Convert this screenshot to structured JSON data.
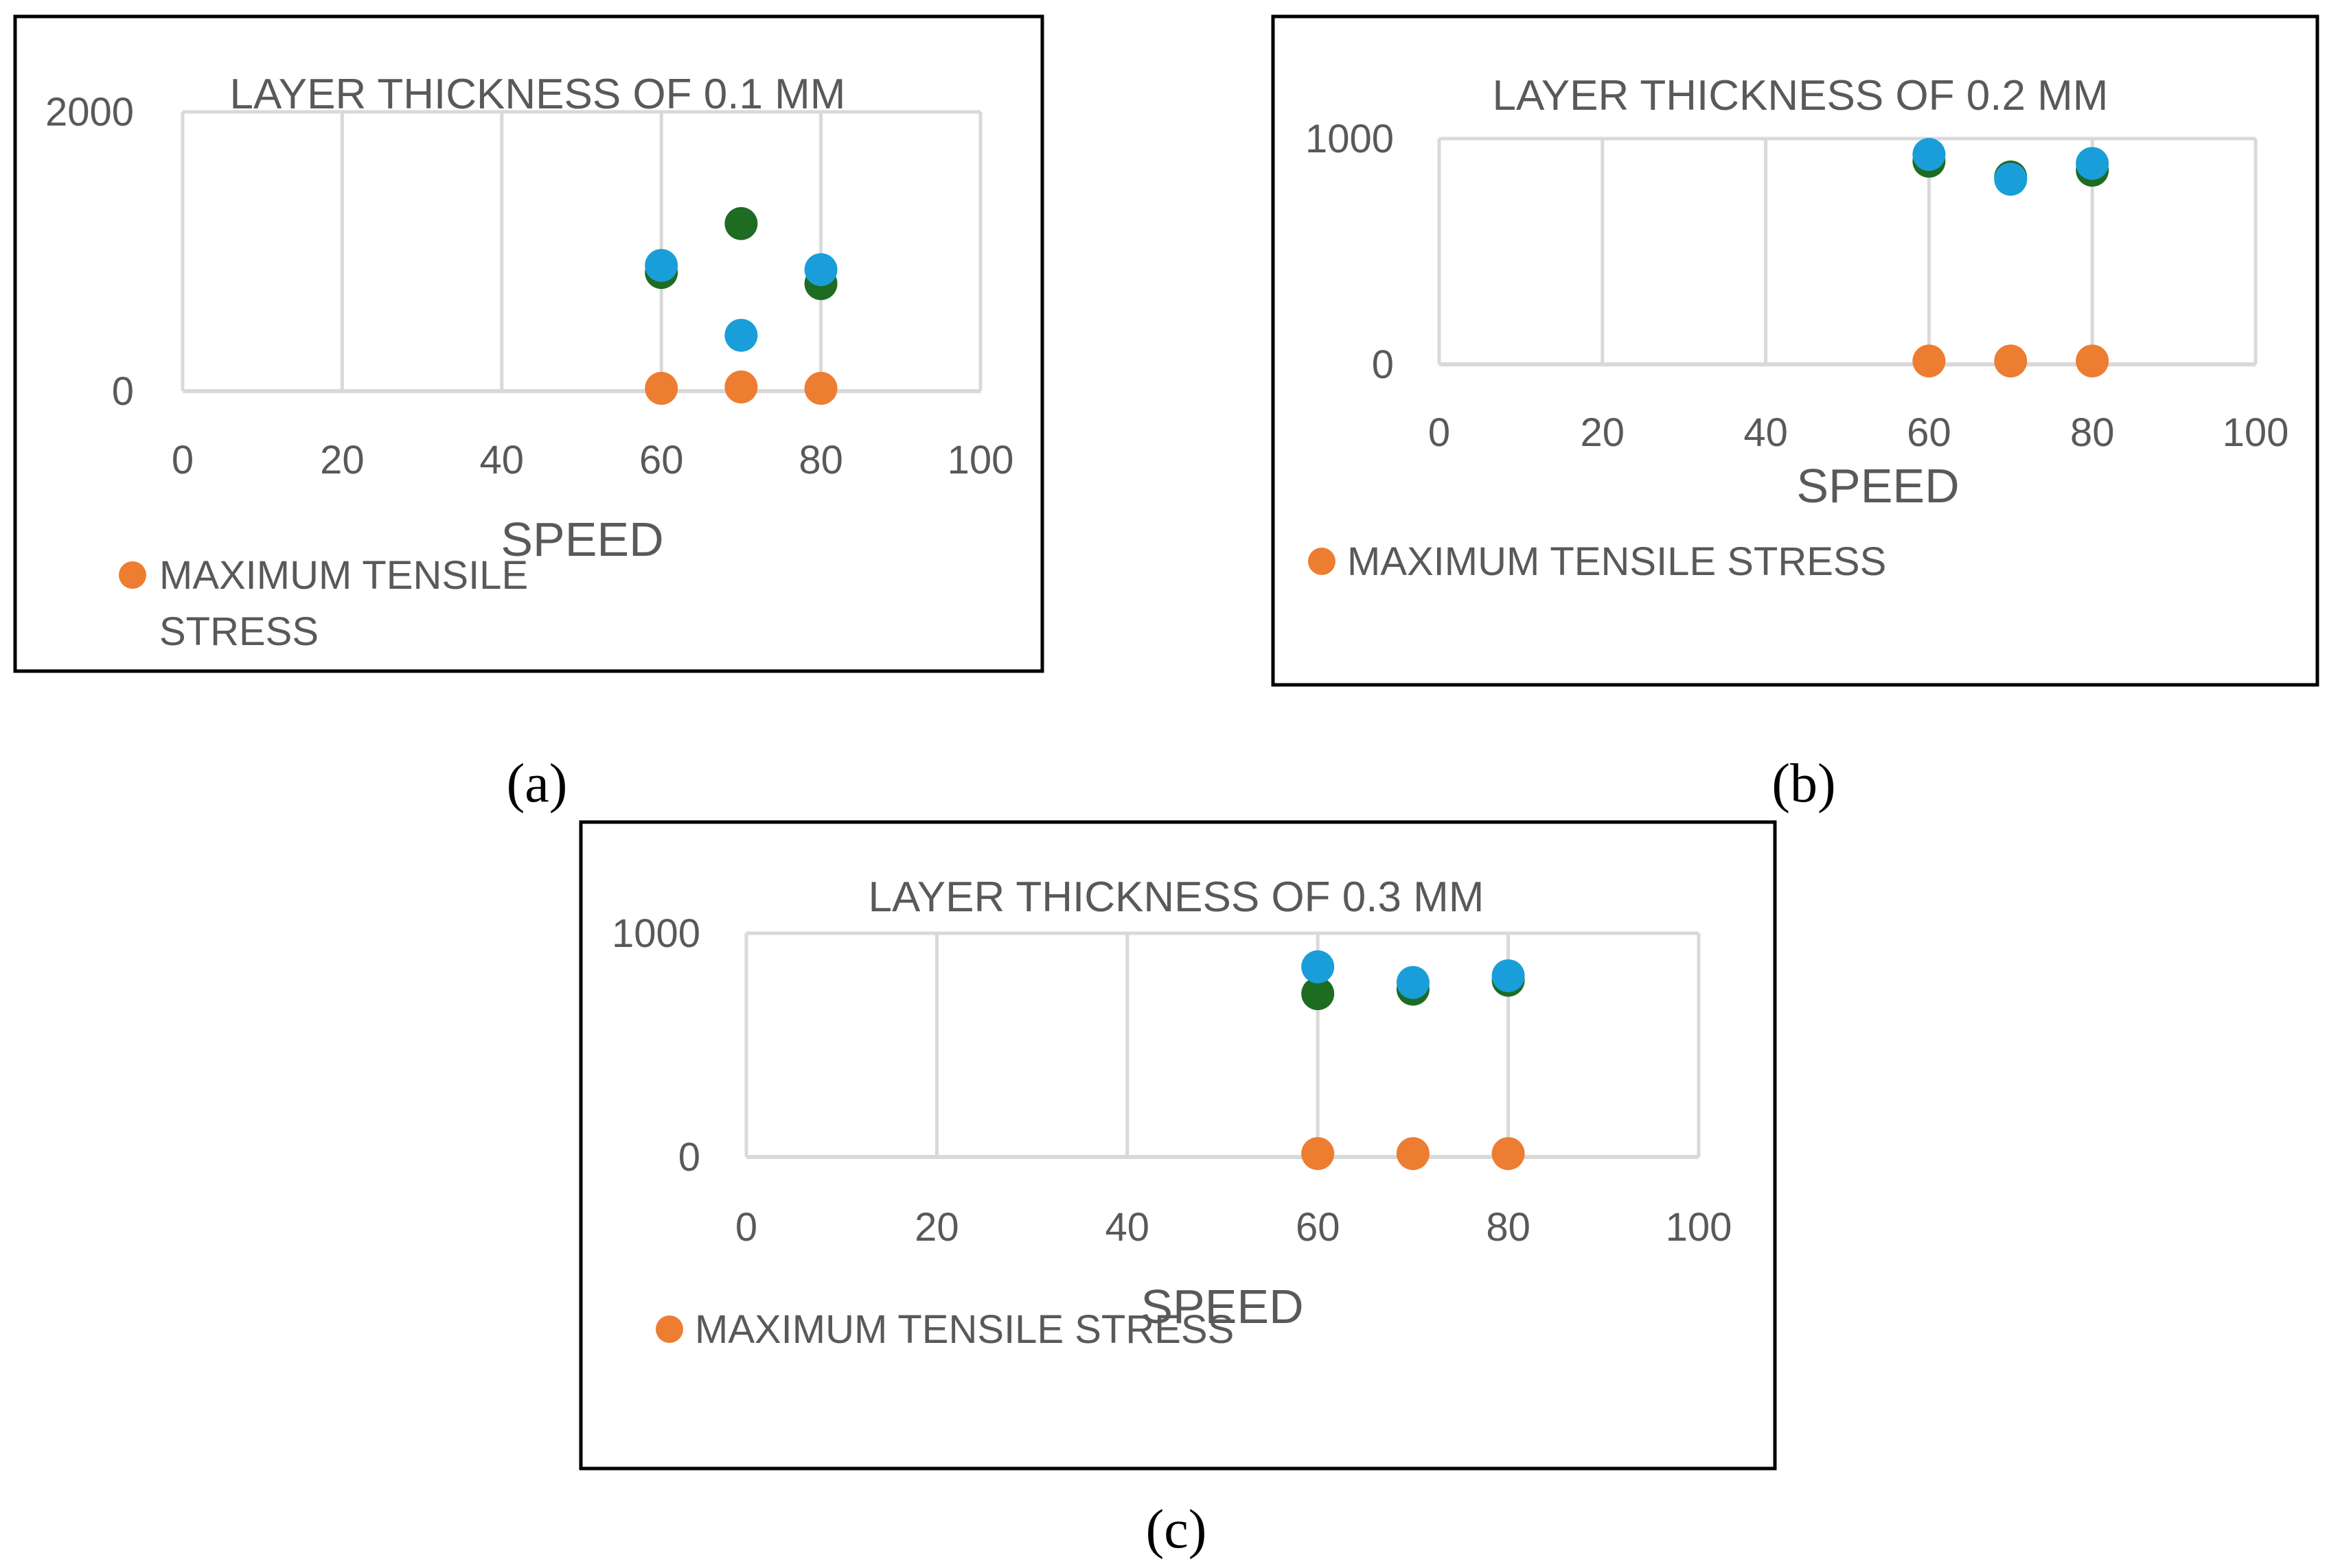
{
  "colors": {
    "max_tensile": "#ED7D31",
    "series_green": "#1E6B22",
    "series_blue": "#199ED9",
    "grid": "#D9D9D9",
    "frame": "#000000",
    "text": "#595959"
  },
  "chart_data": [
    {
      "type": "scatter",
      "title": "LAYER THICKNESS OF 0.1 MM",
      "xlabel": "SPEED",
      "ylabel": "",
      "xlim": [
        0,
        100
      ],
      "ylim": [
        0,
        2000
      ],
      "xticks": [
        "0",
        "20",
        "40",
        "60",
        "80",
        "100"
      ],
      "yticks": [
        "0",
        "2000"
      ],
      "legend": [
        "MAXIMUM TENSILE",
        "STRESS"
      ],
      "caption": "(a)",
      "series": [
        {
          "name": "MAXIMUM TENSILE STRESS",
          "color": "max_tensile",
          "x": [
            60,
            70,
            80
          ],
          "y": [
            20,
            30,
            20
          ]
        },
        {
          "name": "",
          "color": "series_green",
          "x": [
            60,
            70,
            80
          ],
          "y": [
            850,
            1200,
            770
          ]
        },
        {
          "name": "",
          "color": "series_blue",
          "x": [
            60,
            70,
            80
          ],
          "y": [
            900,
            400,
            870
          ]
        }
      ]
    },
    {
      "type": "scatter",
      "title": "LAYER THICKNESS OF 0.2 MM",
      "xlabel": "SPEED",
      "ylabel": "",
      "xlim": [
        0,
        100
      ],
      "ylim": [
        0,
        1000
      ],
      "xticks": [
        "0",
        "20",
        "40",
        "60",
        "80",
        "100"
      ],
      "yticks": [
        "0",
        "1000"
      ],
      "legend": [
        "MAXIMUM TENSILE STRESS"
      ],
      "caption": "(b)",
      "series": [
        {
          "name": "MAXIMUM TENSILE STRESS",
          "color": "max_tensile",
          "x": [
            60,
            70,
            80
          ],
          "y": [
            15,
            15,
            15
          ]
        },
        {
          "name": "",
          "color": "series_green",
          "x": [
            60,
            70,
            80
          ],
          "y": [
            900,
            830,
            860
          ]
        },
        {
          "name": "",
          "color": "series_blue",
          "x": [
            60,
            70,
            80
          ],
          "y": [
            930,
            820,
            890
          ]
        }
      ]
    },
    {
      "type": "scatter",
      "title": "LAYER THICKNESS OF 0.3 MM",
      "xlabel": "SPEED",
      "ylabel": "",
      "xlim": [
        0,
        100
      ],
      "ylim": [
        0,
        1000
      ],
      "xticks": [
        "0",
        "20",
        "40",
        "60",
        "80",
        "100"
      ],
      "yticks": [
        "0",
        "1000"
      ],
      "legend": [
        "MAXIMUM TENSILE STRESS"
      ],
      "caption": "(c)",
      "series": [
        {
          "name": "MAXIMUM TENSILE STRESS",
          "color": "max_tensile",
          "x": [
            60,
            70,
            80
          ],
          "y": [
            15,
            15,
            15
          ]
        },
        {
          "name": "",
          "color": "series_green",
          "x": [
            60,
            70,
            80
          ],
          "y": [
            730,
            750,
            790
          ]
        },
        {
          "name": "",
          "color": "series_blue",
          "x": [
            60,
            70,
            80
          ],
          "y": [
            850,
            780,
            810
          ]
        }
      ]
    }
  ]
}
